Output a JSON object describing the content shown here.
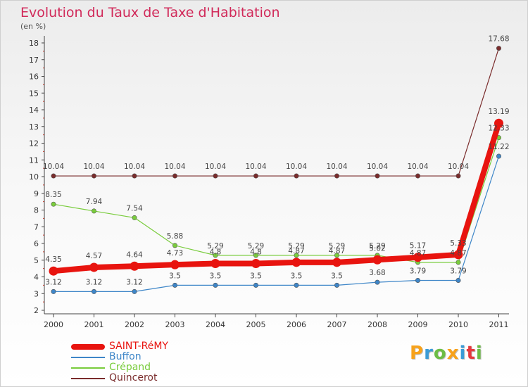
{
  "title": "Evolution du Taux de Taxe d'Habitation",
  "subtitle": "(en %)",
  "logo": {
    "letters": [
      "P",
      "r",
      "o",
      "x",
      "i",
      "t",
      "i"
    ],
    "colors": [
      "#f7a21b",
      "#3b9bd6",
      "#6cbd45",
      "#f7a21b",
      "#3b9bd6",
      "#e6393e",
      "#6cbd45"
    ]
  },
  "chart_data": {
    "type": "line",
    "x": [
      "2000",
      "2001",
      "2002",
      "2003",
      "2004",
      "2005",
      "2006",
      "2007",
      "2008",
      "2009",
      "2010",
      "2011"
    ],
    "ylim": [
      2,
      18
    ],
    "yticks": [
      "2",
      "3",
      "4",
      "5",
      "6",
      "7",
      "8",
      "9",
      "10",
      "11",
      "12",
      "13",
      "14",
      "15",
      "16",
      "17",
      "18"
    ],
    "grid": false,
    "legend_position": "bottom-left",
    "series": [
      {
        "name": "SAINT-RéMY",
        "color": "#e8140f",
        "values": [
          4.35,
          4.57,
          4.64,
          4.73,
          4.8,
          4.8,
          4.87,
          4.87,
          5.02,
          5.17,
          5.33,
          13.19
        ],
        "labels": [
          "4.35",
          "4.57",
          "4.64",
          "4.73",
          "4.8",
          "4.8",
          "4.87",
          "4.87",
          "5.02",
          "5.17",
          "5.33",
          "13.19"
        ]
      },
      {
        "name": "Buffon",
        "color": "#3e86c8",
        "values": [
          3.12,
          3.12,
          3.12,
          3.5,
          3.5,
          3.5,
          3.5,
          3.5,
          3.68,
          3.79,
          3.79,
          11.22
        ],
        "labels": [
          "3.12",
          "3.12",
          "3.12",
          "3.5",
          "3.5",
          "3.5",
          "3.5",
          "3.5",
          "3.68",
          "3.79",
          "3.79",
          "11.22"
        ]
      },
      {
        "name": "Crépand",
        "color": "#79cc3c",
        "values": [
          8.35,
          7.94,
          7.54,
          5.88,
          5.29,
          5.29,
          5.29,
          5.29,
          5.29,
          4.87,
          4.87,
          12.33
        ],
        "labels": [
          "8.35",
          "7.94",
          "7.54",
          "5.88",
          "5.29",
          "5.29",
          "5.29",
          "5.29",
          "5.29",
          "4.87",
          "4.87",
          "12.33"
        ]
      },
      {
        "name": "Quincerot",
        "color": "#7a2c2c",
        "values": [
          10.04,
          10.04,
          10.04,
          10.04,
          10.04,
          10.04,
          10.04,
          10.04,
          10.04,
          10.04,
          10.04,
          17.68
        ],
        "labels": [
          "10.04",
          "10.04",
          "10.04",
          "10.04",
          "10.04",
          "10.04",
          "10.04",
          "10.04",
          "10.04",
          "10.04",
          "10.04",
          "17.68"
        ]
      }
    ]
  }
}
